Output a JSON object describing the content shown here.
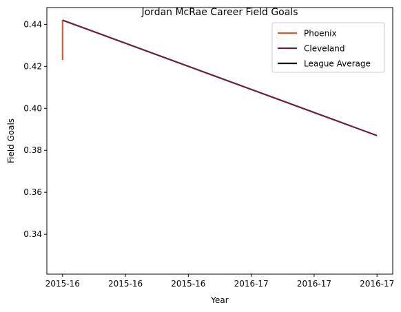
{
  "chart_data": {
    "type": "line",
    "title": "Jordan McRae Career Field Goals",
    "xlabel": "Year",
    "ylabel": "Field Goals",
    "x_tick_labels": [
      "2015-16",
      "2015-16",
      "2015-16",
      "2016-17",
      "2016-17",
      "2016-17"
    ],
    "x_domain": [
      -0.05,
      1.05
    ],
    "ylim": [
      0.321,
      0.448
    ],
    "y_ticks": [
      0.34,
      0.36,
      0.38,
      0.4,
      0.42,
      0.44
    ],
    "y_tick_labels": [
      "0.34",
      "0.36",
      "0.38",
      "0.40",
      "0.42",
      "0.44"
    ],
    "grid": false,
    "legend_position": "top-right",
    "series": [
      {
        "name": "Phoenix",
        "color": "#e05a2b",
        "points": [
          {
            "x": 0,
            "y": 0.423
          },
          {
            "x": 0,
            "y": 0.442
          }
        ]
      },
      {
        "name": "Cleveland",
        "color": "#6b2038",
        "points": [
          {
            "x": 0,
            "y": 0.442
          },
          {
            "x": 1,
            "y": 0.387
          }
        ]
      },
      {
        "name": "League Average",
        "color": "#000000",
        "points": []
      }
    ]
  }
}
